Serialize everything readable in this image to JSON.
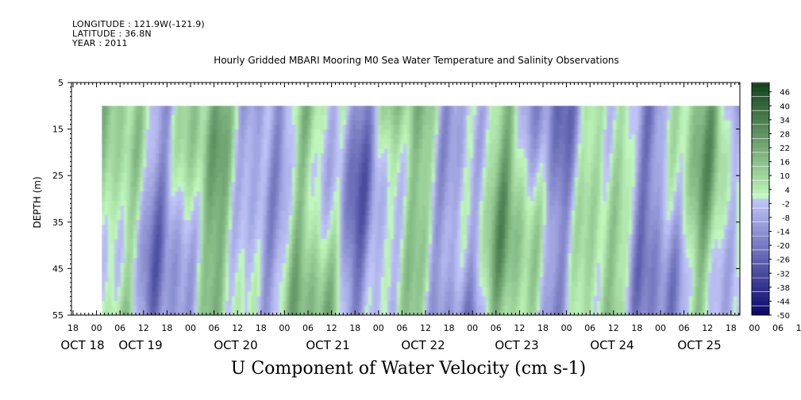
{
  "header": {
    "longitude": "LONGITUDE : 121.9W(-121.9)",
    "latitude": "LATITUDE : 36.8N",
    "year": "YEAR : 2011"
  },
  "chart_data": {
    "type": "heatmap",
    "title": "Hourly Gridded MBARI Mooring M0 Sea Water Temperature and Salinity Observations",
    "xlabel": "U Component of Water Velocity (cm s-1)",
    "ylabel": "DEPTH (m)",
    "y_ticks": [
      "5",
      "15",
      "25",
      "35",
      "45",
      "55"
    ],
    "ylim": [
      55,
      5
    ],
    "data_depth_range": [
      10,
      55
    ],
    "x_hour_ticks": [
      "18",
      "00",
      "06",
      "12",
      "18",
      "00",
      "06",
      "12",
      "18",
      "00",
      "06",
      "12",
      "18",
      "00",
      "06",
      "12",
      "18",
      "00",
      "06",
      "12",
      "18",
      "00",
      "06",
      "12",
      "18",
      "00",
      "06",
      "12",
      "18",
      "00",
      "06",
      "12",
      "18"
    ],
    "x_day_labels": [
      "OCT 18",
      "OCT 19",
      "OCT 20",
      "OCT 21",
      "OCT 22",
      "OCT 23",
      "OCT 24",
      "OCT 25"
    ],
    "colorbar_ticks": [
      "46",
      "40",
      "34",
      "28",
      "22",
      "16",
      "10",
      "4",
      "-2",
      "-8",
      "-14",
      "-20",
      "-26",
      "-32",
      "-38",
      "-44",
      "-50"
    ],
    "colorbar_range": [
      -50,
      50
    ],
    "colors": {
      "negative": "#8a9cf0",
      "positive": "#9af0a0",
      "strong_negative": "#3a55e0",
      "strong_positive": "#20d040"
    }
  }
}
